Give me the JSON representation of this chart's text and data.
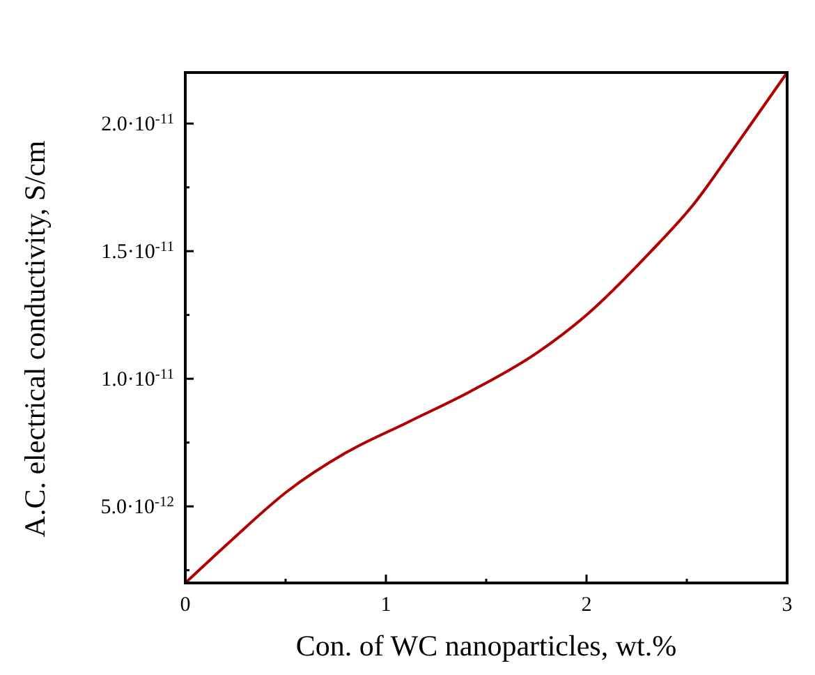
{
  "chart_data": {
    "type": "line",
    "xlabel": "Con. of WC nanoparticles, wt.%",
    "ylabel": "A.C. electrical conductivity, S/cm",
    "x": [
      0,
      0.22,
      0.51,
      0.8,
      1.11,
      1.42,
      1.75,
      2.0,
      2.31,
      2.53,
      2.75,
      3.0
    ],
    "series": [
      {
        "color": "#b00000",
        "values": [
          2e-12,
          3.6e-12,
          5.6e-12,
          7.1e-12,
          8.3e-12,
          9.5e-12,
          1.1e-11,
          1.25e-11,
          1.49e-11,
          1.68e-11,
          1.92e-11,
          2.2e-11
        ]
      }
    ],
    "xlim": [
      0,
      3
    ],
    "xticks": [
      0,
      1,
      2,
      3
    ],
    "ylim": [
      2e-12,
      2.2e-11
    ],
    "yticks": [
      {
        "value": 5e-12,
        "label": "5.0·10$^{-12}$"
      },
      {
        "value": 1e-11,
        "label": "1.0·10$^{-11}$"
      },
      {
        "value": 1.5e-11,
        "label": "1.5·10$^{-11}$"
      },
      {
        "value": 2e-11,
        "label": "2.0·10$^{-11}$"
      }
    ],
    "grid": false,
    "line_style": "solid"
  }
}
